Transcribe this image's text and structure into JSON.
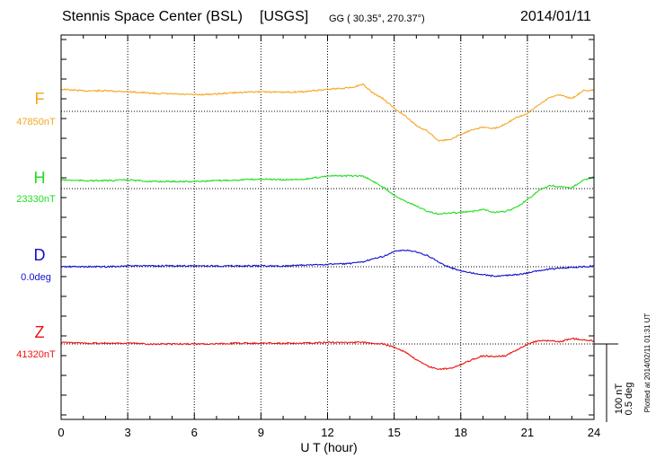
{
  "header": {
    "station": "Stennis Space Center (BSL)",
    "agency": "[USGS]",
    "coords": "GG ( 30.35°, 270.37°)",
    "date": "2014/01/11"
  },
  "plotted_note": "Plotted at 2014/02/11 01:31  UT",
  "scale_bar": {
    "nt_label": "100 nT",
    "deg_label": "0.5 deg"
  },
  "chart_data": {
    "type": "line",
    "title": "Stennis Space Center (BSL) [USGS]",
    "xlabel": "U T (hour)",
    "xlim": [
      0,
      24
    ],
    "xticks": [
      "0",
      "3",
      "6",
      "9",
      "12",
      "15",
      "18",
      "21",
      "24"
    ],
    "grid": true,
    "scale_nt_per_bar": 100,
    "series": [
      {
        "key": "F",
        "name": "F",
        "baseline_label": "47850nT",
        "color": "#f5a623",
        "x": [
          0,
          1,
          2,
          3,
          4,
          5,
          6,
          7,
          8,
          9,
          10,
          11,
          12,
          13,
          13.6,
          14,
          14.5,
          15,
          15.5,
          16,
          16.5,
          17,
          17.5,
          18,
          18.5,
          19,
          19.5,
          20,
          20.5,
          21,
          21.5,
          22,
          22.5,
          23,
          23.5,
          24
        ],
        "y": [
          28,
          26,
          26,
          25,
          23,
          22,
          21,
          22,
          24,
          25,
          24,
          25,
          28,
          30,
          34,
          24,
          16,
          4,
          -6,
          -18,
          -25,
          -37,
          -36,
          -29,
          -23,
          -20,
          -22,
          -16,
          -8,
          -3,
          8,
          18,
          21,
          16,
          26,
          27
        ]
      },
      {
        "key": "H",
        "name": "H",
        "baseline_label": "23330nT",
        "color": "#22dd22",
        "x": [
          0,
          1,
          2,
          3,
          4,
          5,
          6,
          7,
          8,
          9,
          10,
          11,
          12,
          13,
          13.6,
          14,
          14.5,
          15,
          15.5,
          16,
          16.5,
          17,
          17.5,
          18,
          18.5,
          19,
          19.5,
          20,
          20.5,
          21,
          21.5,
          22,
          22.5,
          23,
          23.5,
          24
        ],
        "y": [
          11,
          10,
          10,
          11,
          9,
          9,
          9,
          10,
          11,
          12,
          11,
          12,
          16,
          16,
          16,
          10,
          2,
          -8,
          -16,
          -22,
          -29,
          -32,
          -31,
          -30,
          -29,
          -26,
          -30,
          -29,
          -24,
          -14,
          -3,
          4,
          2,
          1,
          10,
          15
        ]
      },
      {
        "key": "D",
        "name": "D",
        "baseline_label": "0.0deg",
        "color": "#1010cc",
        "x": [
          0,
          1,
          2,
          3,
          4,
          5,
          6,
          7,
          8,
          9,
          10,
          11,
          12,
          13,
          13.6,
          14,
          14.5,
          15,
          15.5,
          16,
          16.5,
          17,
          17.5,
          18,
          18.5,
          19,
          19.5,
          20,
          20.5,
          21,
          21.5,
          22,
          22.5,
          23,
          23.5,
          24
        ],
        "y": [
          0,
          0,
          0,
          1,
          1,
          1,
          1,
          1,
          1,
          1,
          1,
          2,
          3,
          4,
          6,
          10,
          13,
          19,
          21,
          19,
          14,
          6,
          -1,
          -5,
          -8,
          -10,
          -12,
          -11,
          -10,
          -8,
          -5,
          -3,
          -2,
          -1,
          0,
          1
        ]
      },
      {
        "key": "Z",
        "name": "Z",
        "baseline_label": "41320nT",
        "color": "#ee1111",
        "x": [
          0,
          1,
          2,
          3,
          4,
          5,
          6,
          7,
          8,
          9,
          10,
          11,
          12,
          13,
          13.6,
          14,
          14.5,
          15,
          15.5,
          16,
          16.5,
          17,
          17.5,
          18,
          18.5,
          19,
          19.5,
          20,
          20.5,
          21,
          21.5,
          22,
          22.5,
          23,
          23.5,
          24
        ],
        "y": [
          2,
          1,
          1,
          1,
          0,
          0,
          0,
          0,
          1,
          1,
          1,
          1,
          2,
          2,
          2,
          1,
          0,
          -4,
          -10,
          -20,
          -28,
          -32,
          -31,
          -26,
          -20,
          -15,
          -16,
          -15,
          -8,
          0,
          4,
          4,
          3,
          7,
          5,
          4
        ]
      }
    ]
  }
}
